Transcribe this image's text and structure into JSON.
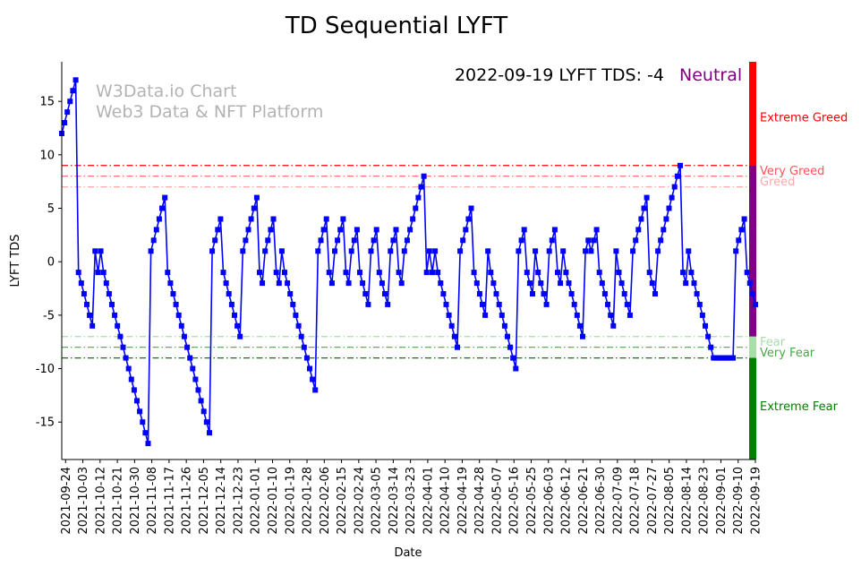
{
  "chart_data": {
    "type": "line",
    "title": "TD Sequential LYFT",
    "xlabel": "Date",
    "ylabel": "LYFT TDS",
    "ylim": [
      -18.5,
      18.7
    ],
    "yticks": [
      -15,
      -10,
      -5,
      0,
      5,
      10,
      15
    ],
    "xlim_dates": [
      "2021-09-22",
      "2022-09-19"
    ],
    "xticks": [
      "2021-09-24",
      "2021-10-03",
      "2021-10-12",
      "2021-10-21",
      "2021-10-30",
      "2021-11-08",
      "2021-11-17",
      "2021-11-26",
      "2021-12-05",
      "2021-12-14",
      "2021-12-23",
      "2022-01-01",
      "2022-01-10",
      "2022-01-19",
      "2022-01-28",
      "2022-02-06",
      "2022-02-15",
      "2022-02-24",
      "2022-03-05",
      "2022-03-14",
      "2022-03-23",
      "2022-04-01",
      "2022-04-10",
      "2022-04-19",
      "2022-04-28",
      "2022-05-07",
      "2022-05-16",
      "2022-05-25",
      "2022-06-03",
      "2022-06-12",
      "2022-06-21",
      "2022-06-30",
      "2022-07-09",
      "2022-07-18",
      "2022-07-27",
      "2022-08-05",
      "2022-08-14",
      "2022-08-23",
      "2022-09-01",
      "2022-09-10",
      "2022-09-19"
    ],
    "status_text": "2022-09-19 LYFT TDS: -4",
    "status_label": "Neutral",
    "status_color": "#800080",
    "line_color": "#0000ff",
    "watermark": [
      "W3Data.io Chart",
      "Web3 Data & NFT Platform"
    ],
    "reference_lines": [
      {
        "value": 9,
        "label": "Very Greed",
        "color": "#ff0000",
        "opacity": 1
      },
      {
        "value": 8,
        "label": "Very Greed",
        "color": "#ff5555",
        "opacity": 0.9
      },
      {
        "value": 7,
        "label": "Greed",
        "color": "#ffaaaa",
        "opacity": 1
      },
      {
        "value": -7,
        "label": "Fear",
        "color": "#aaddaa",
        "opacity": 1
      },
      {
        "value": -8,
        "label": "Very Fear",
        "color": "#44aa44",
        "opacity": 1
      },
      {
        "value": -9,
        "label": "Extreme Fear",
        "color": "#008000",
        "opacity": 1
      }
    ],
    "zone_labels": [
      {
        "value": 13.5,
        "label": "Extreme Greed",
        "color": "#ff0000"
      },
      {
        "value": 8.5,
        "label": "Very Greed",
        "color": "#ff5555"
      },
      {
        "value": 7.5,
        "label": "Greed",
        "color": "#ffaaaa"
      },
      {
        "value": -7.5,
        "label": "Fear",
        "color": "#aaddaa"
      },
      {
        "value": -8.5,
        "label": "Very Fear",
        "color": "#44aa44"
      },
      {
        "value": -13.5,
        "label": "Extreme Fear",
        "color": "#008000"
      }
    ],
    "side_bar": [
      {
        "from": 9,
        "to": 18.7,
        "color": "#ff0000"
      },
      {
        "from": -7,
        "to": 9,
        "color": "#800080"
      },
      {
        "from": -9,
        "to": -7,
        "color": "#aaddaa"
      },
      {
        "from": -18.5,
        "to": -9,
        "color": "#008000"
      }
    ],
    "series": [
      {
        "name": "LYFT TDS",
        "start_date": "2021-09-22",
        "values": [
          12,
          13,
          14,
          15,
          16,
          17,
          -1,
          -2,
          -3,
          -4,
          -5,
          -6,
          1,
          -1,
          1,
          -1,
          -2,
          -3,
          -4,
          -5,
          -6,
          -7,
          -8,
          -9,
          -10,
          -11,
          -12,
          -13,
          -14,
          -15,
          -16,
          -17,
          1,
          2,
          3,
          4,
          5,
          6,
          -1,
          -2,
          -3,
          -4,
          -5,
          -6,
          -7,
          -8,
          -9,
          -10,
          -11,
          -12,
          -13,
          -14,
          -15,
          -16,
          1,
          2,
          3,
          4,
          -1,
          -2,
          -3,
          -4,
          -5,
          -6,
          -7,
          1,
          2,
          3,
          4,
          5,
          6,
          -1,
          -2,
          1,
          2,
          3,
          4,
          -1,
          -2,
          1,
          -1,
          -2,
          -3,
          -4,
          -5,
          -6,
          -7,
          -8,
          -9,
          -10,
          -11,
          -12,
          1,
          2,
          3,
          4,
          -1,
          -2,
          1,
          2,
          3,
          4,
          -1,
          -2,
          1,
          2,
          3,
          -1,
          -2,
          -3,
          -4,
          1,
          2,
          3,
          -1,
          -2,
          -3,
          -4,
          1,
          2,
          3,
          -1,
          -2,
          1,
          2,
          3,
          4,
          5,
          6,
          7,
          8,
          -1,
          1,
          -1,
          1,
          -1,
          -2,
          -3,
          -4,
          -5,
          -6,
          -7,
          -8,
          1,
          2,
          3,
          4,
          5,
          -1,
          -2,
          -3,
          -4,
          -5,
          1,
          -1,
          -2,
          -3,
          -4,
          -5,
          -6,
          -7,
          -8,
          -9,
          -10,
          1,
          2,
          3,
          -1,
          -2,
          -3,
          1,
          -1,
          -2,
          -3,
          -4,
          1,
          2,
          3,
          -1,
          -2,
          1,
          -1,
          -2,
          -3,
          -4,
          -5,
          -6,
          -7,
          1,
          2,
          1,
          2,
          3,
          -1,
          -2,
          -3,
          -4,
          -5,
          -6,
          1,
          -1,
          -2,
          -3,
          -4,
          -5,
          1,
          2,
          3,
          4,
          5,
          6,
          -1,
          -2,
          -3,
          1,
          2,
          3,
          4,
          5,
          6,
          7,
          8,
          9,
          -1,
          -2,
          1,
          -1,
          -2,
          -3,
          -4,
          -5,
          -6,
          -7,
          -8,
          -9,
          -9,
          -9,
          -9,
          -9,
          -9,
          -9,
          -9,
          1,
          2,
          3,
          4,
          -1,
          -2,
          -3,
          -4
        ]
      }
    ]
  }
}
